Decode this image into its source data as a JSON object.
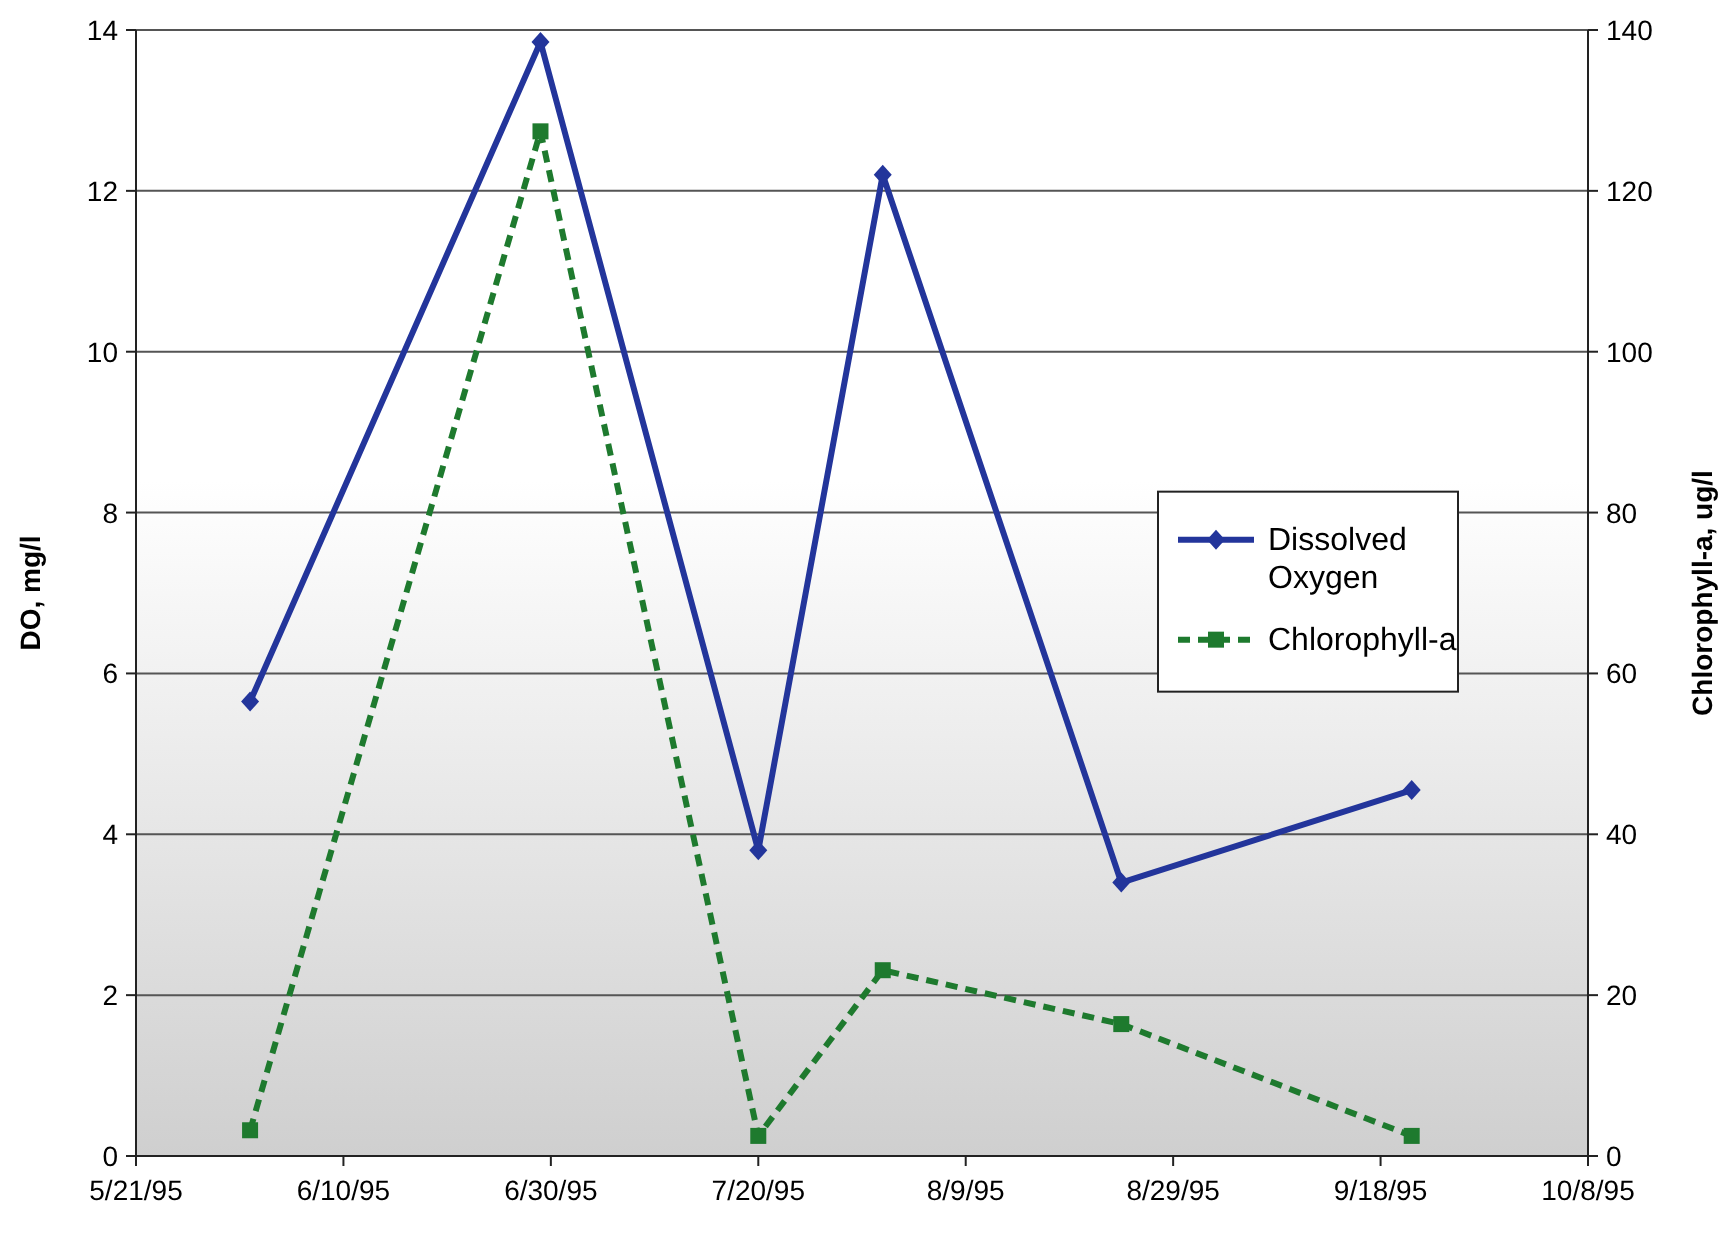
{
  "chart_data": {
    "type": "line",
    "x": [
      "1995-06-01",
      "1995-06-29",
      "1995-07-20",
      "1995-08-01",
      "1995-08-24",
      "1995-09-21"
    ],
    "ylabel": "DO, mg/l",
    "y2label": "Chlorophyll-a, ug/l",
    "series": [
      {
        "name": "Dissolved Oxygen",
        "color": "#23359b",
        "values": [
          5.65,
          13.85,
          3.8,
          12.2,
          3.4,
          4.55
        ],
        "marker": "diamond",
        "line_style": "solid"
      },
      {
        "name": "Chlorophyll-a",
        "color": "#1e7a2e",
        "values": [
          3.2,
          127.4,
          2.5,
          23.1,
          16.4,
          2.5
        ],
        "marker": "square",
        "line_style": "dashed",
        "axis": "y2"
      }
    ],
    "xlim": [
      "1995-05-21",
      "1995-10-08"
    ],
    "xticks": [
      {
        "value": "1995-05-21",
        "label": "5/21/95"
      },
      {
        "value": "1995-06-10",
        "label": "6/10/95"
      },
      {
        "value": "1995-06-30",
        "label": "6/30/95"
      },
      {
        "value": "1995-07-20",
        "label": "7/20/95"
      },
      {
        "value": "1995-08-09",
        "label": "8/9/95"
      },
      {
        "value": "1995-08-29",
        "label": "8/29/95"
      },
      {
        "value": "1995-09-18",
        "label": "9/18/95"
      },
      {
        "value": "1995-10-08",
        "label": "10/8/95"
      }
    ],
    "ylim": [
      0,
      14
    ],
    "yticks": [
      0,
      2,
      4,
      6,
      8,
      10,
      12,
      14
    ],
    "y2lim": [
      0,
      140
    ],
    "y2ticks": [
      0,
      20,
      40,
      60,
      80,
      100,
      120,
      140
    ],
    "grid": "y",
    "legend": "right"
  }
}
